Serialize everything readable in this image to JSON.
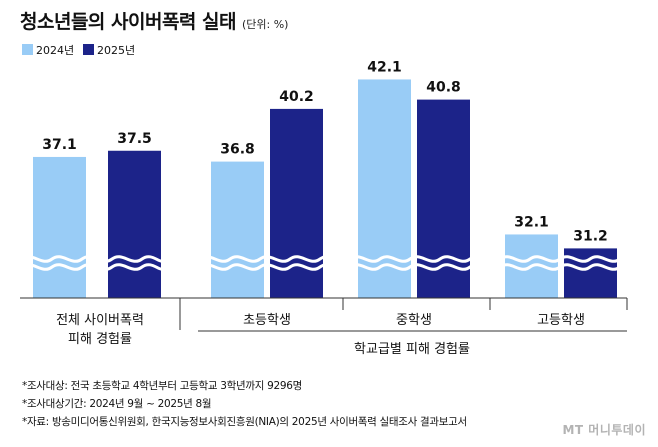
{
  "title": "청소년들의 사이버폭력 실태",
  "unit": "(단위: %)",
  "colors": {
    "y2024": "#99ccf6",
    "y2025": "#1c2389",
    "axis": "#333333",
    "break_wave": "#ffffff"
  },
  "chart_data": {
    "type": "bar",
    "categories": [
      "전체 사이버폭력 피해 경험률",
      "초등학생",
      "중학생",
      "고등학생"
    ],
    "series": [
      {
        "name": "2024년",
        "values": [
          37.1,
          36.8,
          42.1,
          32.1
        ]
      },
      {
        "name": "2025년",
        "values": [
          37.5,
          40.2,
          40.8,
          31.2
        ]
      }
    ],
    "group_label": "학교급별 피해 경험률",
    "value_labels": [
      [
        "37.1",
        "37.5"
      ],
      [
        "36.8",
        "40.2"
      ],
      [
        "42.1",
        "40.8"
      ],
      [
        "32.1",
        "31.2"
      ]
    ],
    "ylim": [
      28,
      44
    ],
    "axis_break": true,
    "legend": "top-left"
  },
  "category_label_lines": [
    [
      "전체 사이버폭력",
      "피해 경험률"
    ],
    [
      "초등학생"
    ],
    [
      "중학생"
    ],
    [
      "고등학생"
    ]
  ],
  "footnotes": [
    "*조사대상: 전국 초등학교 4학년부터 고등학교 3학년까지 9296명",
    "*조사대상기간: 2024년 9월 ~ 2025년 8월",
    "*자료: 방송미디어통신위원회, 한국지능정보사회진흥원(NIA)의 2025년 사이버폭력 실태조사 결과보고서"
  ],
  "watermark": "MT 머니투데이"
}
